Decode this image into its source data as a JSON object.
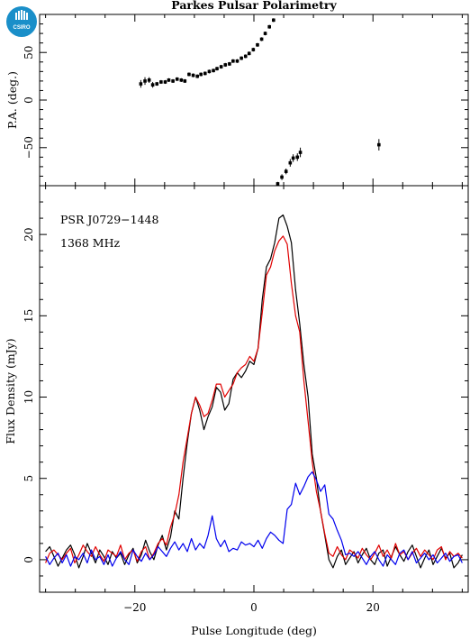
{
  "logo": {
    "text": "CSIRO",
    "color": "#1a8fc9"
  },
  "chart_data": [
    {
      "type": "scatter",
      "title": "Parkes Pulsar Polarimetry",
      "ylabel": "P.A. (deg.)",
      "xlabel": "",
      "xlim": [
        -36,
        36
      ],
      "ylim": [
        -90,
        90
      ],
      "yticks": [
        -50,
        0,
        50
      ],
      "xticks": [
        -20,
        0,
        20
      ],
      "show_x_tick_labels": false,
      "grid": false,
      "color": "#000000",
      "series": [
        {
          "x": [
            -19.0,
            -18.3,
            -17.6,
            -17.0,
            -16.3,
            -15.6,
            -14.9,
            -14.3,
            -13.6,
            -12.9,
            -12.2,
            -11.6,
            -10.9,
            -10.2,
            -9.5,
            -8.9,
            -8.2,
            -7.5,
            -6.8,
            -6.2,
            -5.5,
            -4.8,
            -4.1,
            -3.5,
            -2.8,
            -2.1,
            -1.4,
            -0.8,
            -0.1,
            0.6,
            1.3,
            1.9,
            2.6,
            3.3
          ],
          "y": [
            17,
            20,
            21,
            16,
            17,
            19,
            19,
            21,
            20,
            22,
            21,
            20,
            27,
            26,
            25,
            27,
            28,
            30,
            31,
            33,
            35,
            37,
            38,
            41,
            41,
            44,
            46,
            49,
            53,
            58,
            64,
            70,
            77,
            84
          ],
          "err": [
            4,
            4,
            3,
            3,
            2,
            2,
            2,
            2,
            2,
            2,
            2,
            2,
            2,
            2,
            2,
            2,
            2,
            2,
            2,
            2,
            2,
            2,
            2,
            2,
            2,
            2,
            2,
            2,
            2,
            2,
            2,
            2,
            2,
            2
          ]
        },
        {
          "x": [
            4.0,
            4.7,
            5.4,
            6.1,
            6.6,
            7.3,
            7.8,
            21.0
          ],
          "y": [
            -88,
            -81,
            -75,
            -66,
            -61,
            -60,
            -55,
            -47
          ],
          "err": [
            2,
            3,
            3,
            4,
            4,
            4,
            5,
            6
          ]
        }
      ]
    },
    {
      "type": "line",
      "title": "",
      "xlabel": "Pulse Longitude (deg)",
      "ylabel": "Flux Density (mJy)",
      "xlim": [
        -36,
        36
      ],
      "ylim": [
        -2,
        23
      ],
      "xticks": [
        -20,
        0,
        20
      ],
      "yticks": [
        0,
        5,
        10,
        15,
        20
      ],
      "grid": false,
      "annotations": [
        "PSR J0729−1448",
        "1368 MHz"
      ],
      "x_start": -35,
      "x_step": 0.7,
      "series": [
        {
          "color": "#000000",
          "values": [
            0.5,
            0.8,
            0.2,
            -0.4,
            0.1,
            0.6,
            0.9,
            0.3,
            -0.5,
            0.2,
            1.0,
            0.4,
            -0.2,
            0.6,
            0.2,
            -0.3,
            0.5,
            0.1,
            0.4,
            -0.3,
            0.3,
            0.7,
            -0.2,
            0.3,
            1.2,
            0.5,
            0.0,
            0.9,
            1.5,
            0.6,
            1.4,
            3.0,
            2.5,
            5.0,
            7.2,
            9.0,
            10.0,
            9.2,
            8.0,
            8.8,
            9.4,
            10.6,
            10.3,
            9.2,
            9.6,
            11.1,
            11.5,
            11.2,
            11.6,
            12.2,
            12.0,
            13.0,
            16.0,
            18.0,
            18.5,
            19.5,
            21.0,
            21.2,
            20.5,
            19.5,
            16.6,
            14.5,
            12.0,
            10.0,
            6.5,
            5.0,
            3.0,
            1.5,
            0.0,
            -0.5,
            0.2,
            0.6,
            -0.3,
            0.1,
            0.5,
            -0.2,
            0.3,
            0.7,
            0.0,
            -0.3,
            0.4,
            0.6,
            -0.4,
            0.2,
            0.8,
            0.3,
            -0.1,
            0.5,
            0.9,
            0.2,
            -0.5,
            0.1,
            0.6,
            -0.3,
            0.2,
            0.7,
            0.1,
            0.4,
            -0.5,
            -0.2,
            0.3
          ]
        },
        {
          "color": "#e00000",
          "values": [
            -0.2,
            0.4,
            0.6,
            0.3,
            0.0,
            0.4,
            0.7,
            -0.2,
            0.3,
            0.9,
            0.5,
            0.2,
            0.8,
            0.3,
            -0.1,
            0.6,
            0.4,
            0.2,
            0.9,
            0.0,
            0.4,
            0.6,
            -0.1,
            0.5,
            0.8,
            0.0,
            0.4,
            1.0,
            1.3,
            0.9,
            2.0,
            2.8,
            4.0,
            6.0,
            7.5,
            9.0,
            10.0,
            9.5,
            8.8,
            9.0,
            9.8,
            10.8,
            10.8,
            10.0,
            10.4,
            10.8,
            11.5,
            11.8,
            12.0,
            12.5,
            12.2,
            13.0,
            15.2,
            17.5,
            18.0,
            19.0,
            19.6,
            19.9,
            19.4,
            17.0,
            15.0,
            14.0,
            11.0,
            8.5,
            6.0,
            4.2,
            3.0,
            1.6,
            0.4,
            0.2,
            0.8,
            0.3,
            0.0,
            0.6,
            0.4,
            0.1,
            0.7,
            0.3,
            0.0,
            0.4,
            0.9,
            0.2,
            0.6,
            0.1,
            1.0,
            0.3,
            0.5,
            0.0,
            0.4,
            0.7,
            0.2,
            0.6,
            0.3,
            0.0,
            0.6,
            0.8,
            0.0,
            0.5,
            0.2,
            0.4,
            0.1
          ]
        },
        {
          "color": "#0000ee",
          "values": [
            0.2,
            -0.3,
            0.1,
            0.4,
            -0.2,
            0.3,
            -0.4,
            0.2,
            0.0,
            0.4,
            -0.2,
            0.6,
            0.0,
            0.2,
            -0.3,
            0.3,
            -0.4,
            0.1,
            0.5,
            0.0,
            -0.3,
            0.6,
            0.2,
            -0.1,
            0.4,
            0.0,
            0.3,
            0.8,
            0.5,
            0.2,
            0.7,
            1.1,
            0.6,
            1.0,
            0.5,
            1.3,
            0.6,
            1.0,
            0.7,
            1.5,
            2.7,
            1.3,
            0.8,
            1.2,
            0.5,
            0.7,
            0.6,
            1.1,
            0.9,
            1.0,
            0.8,
            1.2,
            0.7,
            1.3,
            1.7,
            1.5,
            1.2,
            1.0,
            3.1,
            3.4,
            4.7,
            4.0,
            4.5,
            5.1,
            5.4,
            4.9,
            4.2,
            4.6,
            2.8,
            2.5,
            1.8,
            1.2,
            0.3,
            0.4,
            0.2,
            0.5,
            0.1,
            -0.3,
            0.2,
            0.5,
            0.0,
            -0.4,
            0.3,
            0.0,
            -0.3,
            0.4,
            0.6,
            0.0,
            0.5,
            -0.2,
            0.1,
            0.4,
            0.0,
            0.3,
            -0.2,
            0.1,
            0.4,
            -0.1,
            0.2,
            0.3,
            -0.2
          ]
        }
      ]
    }
  ]
}
